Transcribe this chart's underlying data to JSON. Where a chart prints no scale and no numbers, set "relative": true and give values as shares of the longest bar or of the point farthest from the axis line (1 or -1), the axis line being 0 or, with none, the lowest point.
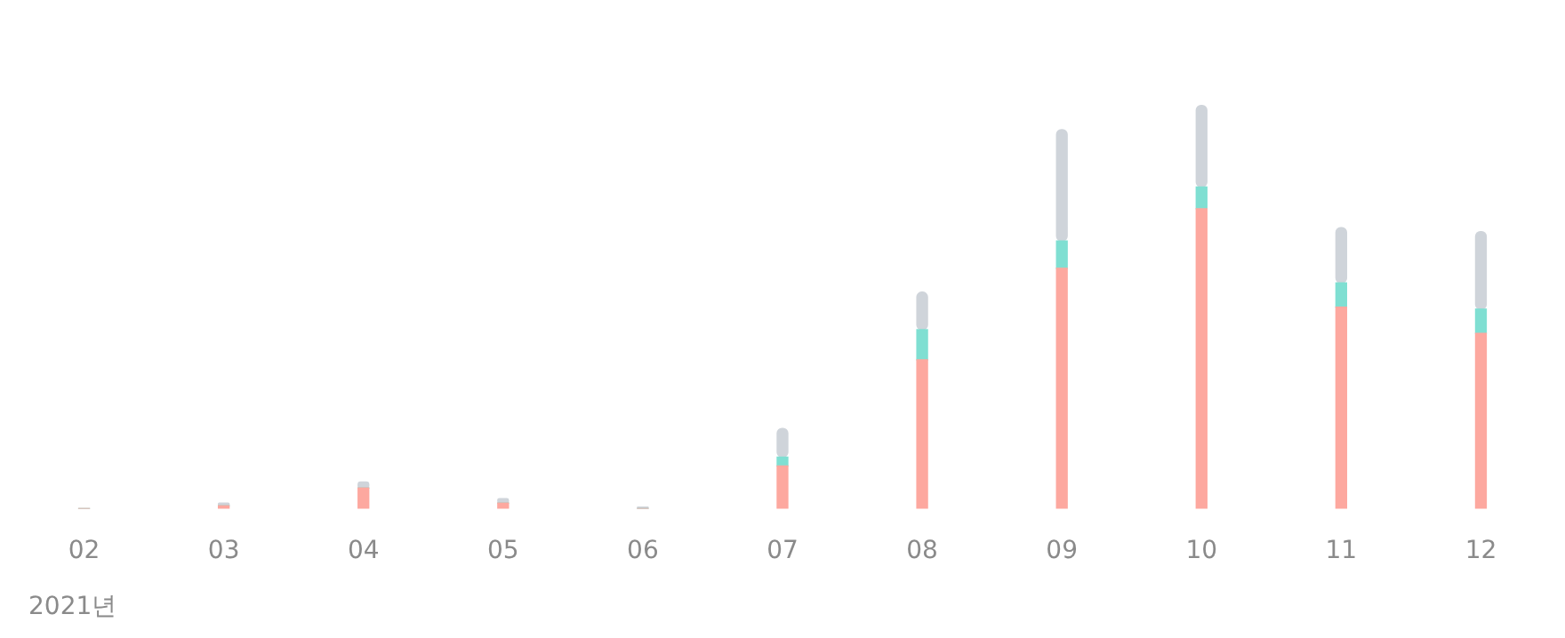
{
  "chart_data": {
    "type": "bar",
    "stacked": true,
    "relative": true,
    "legend": false,
    "categories": [
      "02",
      "03",
      "04",
      "05",
      "06",
      "07",
      "08",
      "09",
      "10",
      "11",
      "12"
    ],
    "series": [
      {
        "color": "#fda89f",
        "values": [
          0,
          0.007,
          0.051,
          0.014,
          0,
          0.106,
          0.369,
          0.596,
          0.744,
          0.5,
          0.435
        ]
      },
      {
        "color": "#7fdfd2",
        "values": [
          0,
          0,
          0,
          0,
          0,
          0.022,
          0.075,
          0.068,
          0.054,
          0.06,
          0.06
        ]
      },
      {
        "color": "#cfd4da",
        "values": [
          0,
          0.007,
          0.015,
          0.011,
          0.004,
          0.071,
          0.093,
          0.276,
          0.202,
          0.137,
          0.192
        ]
      }
    ],
    "annotations": [
      "2021년"
    ]
  }
}
